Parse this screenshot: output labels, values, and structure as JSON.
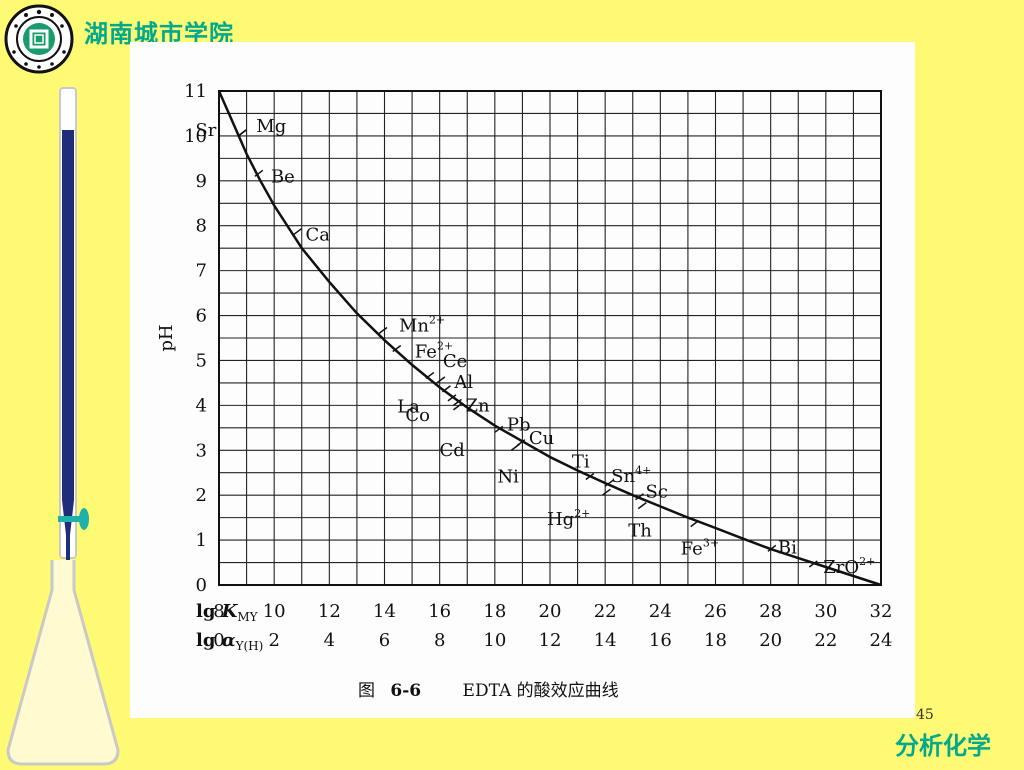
{
  "header": {
    "school_name": "湖南城市学院",
    "logo_icon": "university-seal-icon",
    "brand_color": "#00a98e"
  },
  "footer": {
    "page_number": "45",
    "subject": "分析化学"
  },
  "decoration": {
    "apparatus_icon": "burette-and-flask-icon",
    "background_color": "#fffa74"
  },
  "chart_data": {
    "type": "line",
    "title_prefix": "图",
    "title_number": "6-6",
    "title_text": "EDTA 的酸效应曲线",
    "ylabel": "pH",
    "ylim": [
      0,
      11
    ],
    "y_ticks": [
      "0",
      "1",
      "2",
      "3",
      "4",
      "5",
      "6",
      "7",
      "8",
      "9",
      "10",
      "11"
    ],
    "x_rows": [
      {
        "label": "lg K",
        "sub": "MY",
        "ticks": [
          "8",
          "10",
          "12",
          "14",
          "16",
          "18",
          "20",
          "22",
          "24",
          "26",
          "28",
          "30",
          "32"
        ]
      },
      {
        "label": "lg α",
        "sub": "Y(H)",
        "ticks": [
          "0",
          "2",
          "4",
          "6",
          "8",
          "10",
          "12",
          "14",
          "16",
          "18",
          "20",
          "22",
          "24"
        ]
      }
    ],
    "xlim": [
      8,
      32
    ],
    "grid": true,
    "curve": {
      "x": [
        8,
        8.5,
        9,
        9.5,
        10,
        11,
        12,
        13,
        14,
        15,
        16,
        17,
        18,
        19,
        20,
        21,
        22,
        23,
        24,
        25,
        26,
        27,
        28,
        29,
        30,
        31,
        32
      ],
      "y": [
        11,
        10.3,
        9.6,
        9.0,
        8.45,
        7.5,
        6.75,
        6.05,
        5.45,
        4.9,
        4.4,
        3.95,
        3.55,
        3.2,
        2.85,
        2.55,
        2.27,
        2.0,
        1.75,
        1.5,
        1.27,
        1.03,
        0.8,
        0.6,
        0.4,
        0.2,
        0.0
      ]
    },
    "ions": [
      {
        "label": "Mg",
        "sup": "",
        "x": 8.7,
        "y": 10.0
      },
      {
        "label": "Sr",
        "sup": "",
        "x": 8.7,
        "y": 10.0
      },
      {
        "label": "Be",
        "sup": "",
        "x": 9.3,
        "y": 9.1
      },
      {
        "label": "Ca",
        "sup": "",
        "x": 10.7,
        "y": 7.8
      },
      {
        "label": "Mn",
        "sup": "2+",
        "x": 13.8,
        "y": 5.6
      },
      {
        "label": "Fe",
        "sup": "2+",
        "x": 14.3,
        "y": 5.2
      },
      {
        "label": "La",
        "sup": "",
        "x": 15.5,
        "y": 4.6
      },
      {
        "label": "Ce",
        "sup": "",
        "x": 15.9,
        "y": 4.5
      },
      {
        "label": "Al",
        "sup": "",
        "x": 16.1,
        "y": 4.3
      },
      {
        "label": "Zn",
        "sup": "",
        "x": 16.5,
        "y": 4.0
      },
      {
        "label": "Co",
        "sup": "",
        "x": 16.3,
        "y": 4.1
      },
      {
        "label": "Cd",
        "sup": "",
        "x": 16.5,
        "y": 3.9
      },
      {
        "label": "Pb",
        "sup": "",
        "x": 18.0,
        "y": 3.4
      },
      {
        "label": "Cu",
        "sup": "",
        "x": 18.8,
        "y": 3.1
      },
      {
        "label": "Ni",
        "sup": "",
        "x": 18.6,
        "y": 3.0
      },
      {
        "label": "Ti",
        "sup": "",
        "x": 21.3,
        "y": 2.35
      },
      {
        "label": "Sn",
        "sup": "4+",
        "x": 22.0,
        "y": 2.2
      },
      {
        "label": "Hg",
        "sup": "2+",
        "x": 21.9,
        "y": 2.0
      },
      {
        "label": "Sc",
        "sup": "",
        "x": 23.1,
        "y": 1.9
      },
      {
        "label": "Th",
        "sup": "",
        "x": 23.2,
        "y": 1.7
      },
      {
        "label": "Fe",
        "sup": "3+",
        "x": 25.1,
        "y": 1.3
      },
      {
        "label": "Bi",
        "sup": "",
        "x": 27.9,
        "y": 0.75
      },
      {
        "label": "ZrO",
        "sup": "2+",
        "x": 29.4,
        "y": 0.4
      }
    ]
  }
}
